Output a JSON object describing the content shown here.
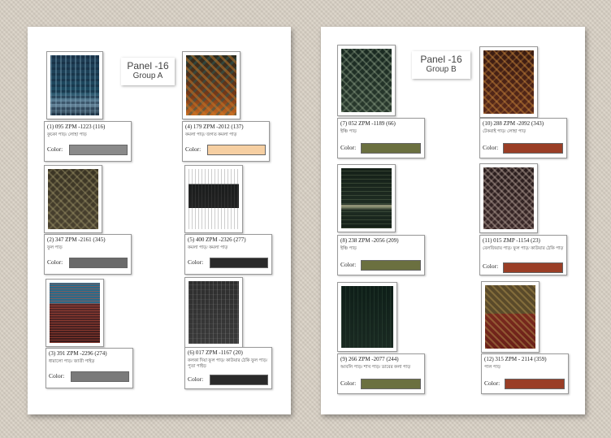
{
  "panels": [
    {
      "title": "Panel -16",
      "group": "Group A",
      "items": [
        {
          "code": "(1) 095 ZPM -1223 (116)",
          "desc": "কুচকা পাড়/ লোহা পাড়",
          "color_label": "Color:",
          "color": "#8a8a8a"
        },
        {
          "code": "(4) 179 ZPM -2012 (137)",
          "desc": "কমলা পাড়/ জগত কমলা পাড়",
          "color_label": "Color:",
          "color": "#f6cfa2"
        },
        {
          "code": "(2) 347 ZPM -2161 (345)",
          "desc": "ফুল পাড়",
          "color_label": "Color:",
          "color": "#6a6a6a"
        },
        {
          "code": "(5) 400 ZPM -2326 (277)",
          "desc": "কমলা পাড়/ কমলা পাড়",
          "color_label": "Color:",
          "color": "#2a2a2a"
        },
        {
          "code": "(3) 391 ZPM -2296 (274)",
          "desc": "ধারালো পাড়/ জাতী পাইড়",
          "color_label": "Color:",
          "color": "#7a7a7a"
        },
        {
          "code": "(6) 017 ZPM -1167 (20)",
          "desc": "কলকা দিয়া ফুল পাড়/ কাউয়ার ঠেকি ফুল পাড়/ পুতা পাইড়",
          "color_label": "Color:",
          "color": "#2a2a2a"
        }
      ]
    },
    {
      "title": "Panel -16",
      "group": "Group B",
      "items": [
        {
          "code": "(7) 052 ZPM -1189 (66)",
          "desc": "ইঞ্চি পাড়",
          "color_label": "Color:",
          "color": "#6b7040"
        },
        {
          "code": "(10) 288 ZPM -2092 (343)",
          "desc": "টেকরাই পাড়/ লোহা পাড়",
          "color_label": "Color:",
          "color": "#9a3e26"
        },
        {
          "code": "(8) 238 ZPM -2056 (209)",
          "desc": "ইঞ্চি পাড়",
          "color_label": "Color:",
          "color": "#6b7040"
        },
        {
          "code": "(11) 015 ZMP -1154 (23)",
          "desc": "বেলজিয়ায় পাড়/ ফুল পাড়/ কাউয়ার ঠেকি পাড়",
          "color_label": "Color:",
          "color": "#9a3e26"
        },
        {
          "code": "(9) 266 ZPM -2077 (244)",
          "desc": "আবলি পাড়/ শাখ পাড়/ ডাবের কলা পাড়",
          "color_label": "Color:",
          "color": "#6b7040"
        },
        {
          "code": "(12) 315 ZPM - 2114 (359)",
          "desc": "পাল পাড়",
          "color_label": "Color:",
          "color": "#9a3e26"
        }
      ]
    }
  ]
}
